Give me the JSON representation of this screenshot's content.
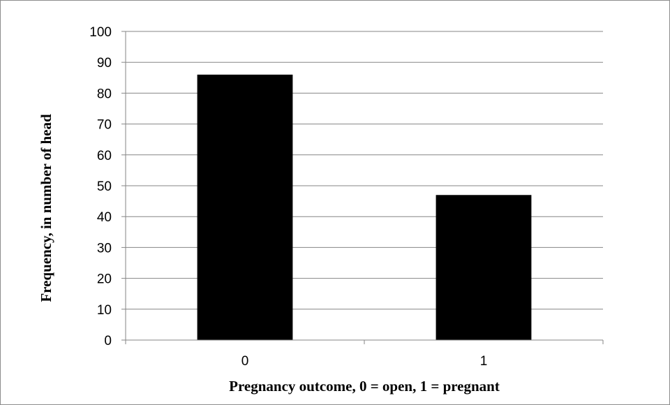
{
  "chart_data": {
    "type": "bar",
    "title": "",
    "xlabel": "Pregnancy outcome, 0 = open, 1 = pregnant",
    "ylabel": "Frequency, in number  of head",
    "categories": [
      "0",
      "1"
    ],
    "values": [
      86,
      47
    ],
    "ylim": [
      0,
      100
    ],
    "yticks": [
      0,
      10,
      20,
      30,
      40,
      50,
      60,
      70,
      80,
      90,
      100
    ],
    "grid": true,
    "legend": "none",
    "colors": {
      "bar": "#000000",
      "grid": "#868686",
      "axis": "#868686",
      "frame": "#8c8c8c"
    }
  }
}
